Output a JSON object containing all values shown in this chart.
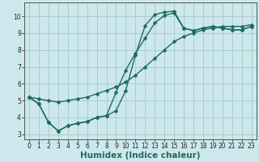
{
  "xlabel": "Humidex (Indice chaleur)",
  "background_color": "#cce8ec",
  "grid_color": "#aacccc",
  "line_color": "#1e6b5e",
  "xlim": [
    -0.5,
    23.5
  ],
  "ylim": [
    2.7,
    10.8
  ],
  "xticks": [
    0,
    1,
    2,
    3,
    4,
    5,
    6,
    7,
    8,
    9,
    10,
    11,
    12,
    13,
    14,
    15,
    16,
    17,
    18,
    19,
    20,
    21,
    22,
    23
  ],
  "yticks": [
    3,
    4,
    5,
    6,
    7,
    8,
    9,
    10
  ],
  "curve1_x": [
    0,
    1,
    2,
    3,
    4,
    5,
    6,
    7,
    8,
    9,
    10,
    11,
    12,
    13,
    14,
    15,
    16,
    17,
    18,
    19,
    20,
    21,
    22,
    23
  ],
  "curve1_y": [
    5.2,
    4.8,
    3.7,
    3.2,
    3.5,
    3.65,
    3.75,
    4.0,
    4.1,
    4.4,
    5.6,
    7.7,
    9.45,
    10.1,
    10.25,
    10.3,
    9.3,
    9.15,
    9.3,
    9.4,
    9.3,
    9.2,
    9.2,
    9.4
  ],
  "curve2_x": [
    0,
    1,
    2,
    3,
    4,
    5,
    6,
    7,
    8,
    9,
    10,
    11,
    12,
    13,
    14,
    15,
    16,
    17,
    18,
    19,
    20,
    21,
    22,
    23
  ],
  "curve2_y": [
    5.2,
    4.8,
    3.7,
    3.2,
    3.5,
    3.65,
    3.75,
    4.0,
    4.1,
    5.5,
    6.8,
    7.8,
    8.7,
    9.6,
    10.05,
    10.2,
    9.3,
    9.15,
    9.3,
    9.4,
    9.3,
    9.2,
    9.2,
    9.4
  ],
  "curve3_x": [
    0,
    1,
    2,
    3,
    4,
    5,
    6,
    7,
    8,
    9,
    10,
    11,
    12,
    13,
    14,
    15,
    16,
    17,
    18,
    19,
    20,
    21,
    22,
    23
  ],
  "curve3_y": [
    5.2,
    5.1,
    5.0,
    4.9,
    5.0,
    5.1,
    5.2,
    5.4,
    5.6,
    5.8,
    6.1,
    6.5,
    7.0,
    7.5,
    8.0,
    8.5,
    8.8,
    9.0,
    9.2,
    9.3,
    9.4,
    9.4,
    9.4,
    9.5
  ],
  "markersize": 2.5,
  "linewidth": 1.0,
  "tick_fontsize": 5.5,
  "xlabel_fontsize": 7.5
}
